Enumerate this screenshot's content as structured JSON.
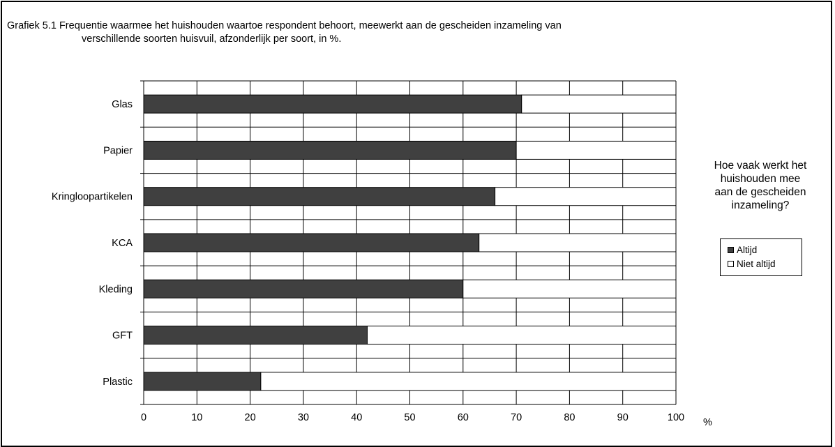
{
  "chart_data": {
    "type": "bar",
    "orientation": "horizontal",
    "stacked": true,
    "title": "Grafiek 5.1 Frequentie waarmee het huishouden waartoe respondent behoort, meewerkt aan de gescheiden inzameling van verschillende soorten huisvuil, afzonderlijk per soort, in %.",
    "title_lines": [
      "Grafiek 5.1 Frequentie waarmee het huishouden waartoe respondent behoort, meewerkt aan de gescheiden inzameling van",
      "verschillende soorten huisvuil, afzonderlijk per soort, in %."
    ],
    "categories": [
      "Glas",
      "Papier",
      "Kringloopartikelen",
      "KCA",
      "Kleding",
      "GFT",
      "Plastic"
    ],
    "series": [
      {
        "name": "Altijd",
        "values": [
          71,
          70,
          66,
          63,
          60,
          42,
          22
        ],
        "color": "#404040"
      },
      {
        "name": "Niet altijd",
        "values": [
          29,
          30,
          34,
          37,
          40,
          58,
          78
        ],
        "color": "#ffffff"
      }
    ],
    "xlim": [
      0,
      100
    ],
    "xticks": [
      "0",
      "10",
      "20",
      "30",
      "40",
      "50",
      "60",
      "70",
      "80",
      "90",
      "100"
    ],
    "x_unit": "%",
    "legend_title": "Hoe vaak werkt het\nhuishouden mee\naan de gescheiden\ninzameling?",
    "legend_position": "right",
    "grid": true
  }
}
